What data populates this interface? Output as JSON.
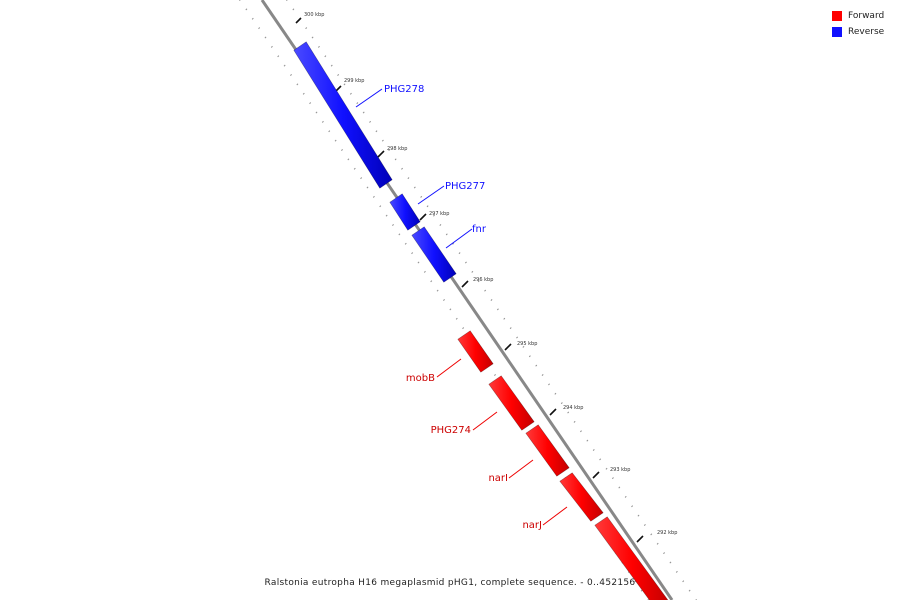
{
  "legend": {
    "forward_label": "Forward",
    "reverse_label": "Reverse",
    "forward_color": "#ff0000",
    "reverse_color": "#1010ff"
  },
  "caption": "Ralstonia eutropha H16 megaplasmid pHG1, complete sequence. - 0..452156",
  "ticks": [
    "300 kbp",
    "299 kbp",
    "298 kbp",
    "297 kbp",
    "296 kbp",
    "295 kbp",
    "294 kbp",
    "293 kbp",
    "292 kbp"
  ],
  "genes": [
    {
      "name": "PHG278",
      "strand": "reverse"
    },
    {
      "name": "PHG277",
      "strand": "reverse"
    },
    {
      "name": "fnr",
      "strand": "reverse"
    },
    {
      "name": "mobB",
      "strand": "forward"
    },
    {
      "name": "PHG274",
      "strand": "forward"
    },
    {
      "name": "narI",
      "strand": "forward"
    },
    {
      "name": "narJ",
      "strand": "forward"
    }
  ]
}
